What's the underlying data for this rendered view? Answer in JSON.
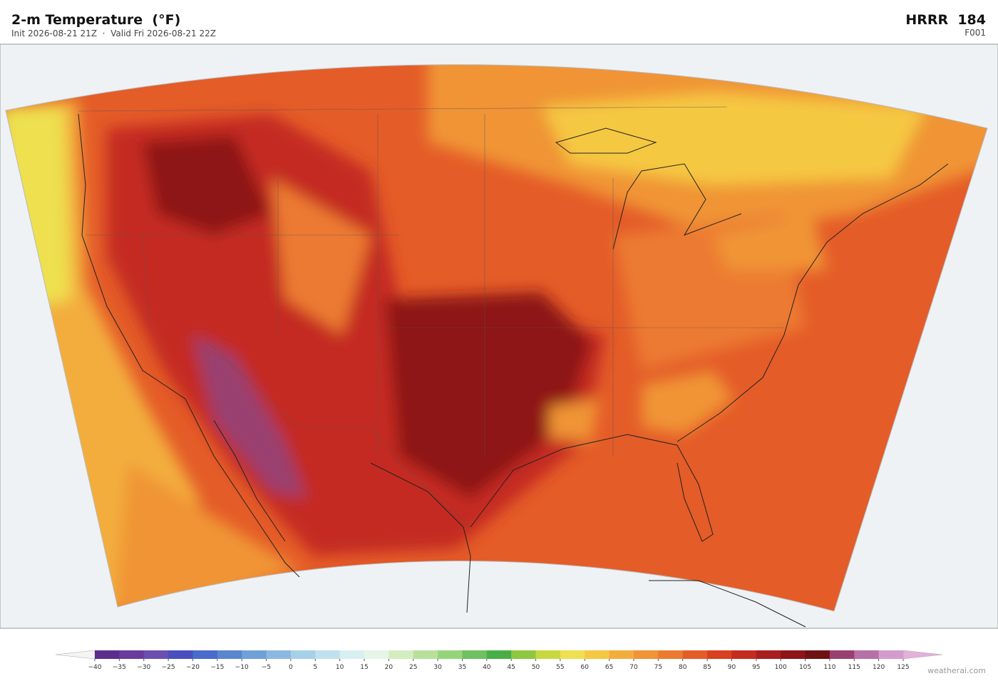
{
  "header": {
    "title": "2-m Temperature  (°F)",
    "subtitle": "Init 2026-08-21 21Z  ·  Valid Fri 2026-08-21 22Z",
    "model": "HRRR  184",
    "forecast_hour": "F001"
  },
  "colorbar": {
    "lim": [
      -40,
      125
    ],
    "ticks": [
      {
        "value": -40,
        "label": "−40"
      },
      {
        "value": -35,
        "label": "−35"
      },
      {
        "value": -30,
        "label": "−30"
      },
      {
        "value": -25,
        "label": "−25"
      },
      {
        "value": -20,
        "label": "−20"
      },
      {
        "value": -15,
        "label": "−15"
      },
      {
        "value": -10,
        "label": "−10"
      },
      {
        "value": -5,
        "label": "−5"
      },
      0,
      5,
      10,
      15,
      20,
      25,
      30,
      35,
      40,
      45,
      50,
      55,
      60,
      65,
      70,
      75,
      80,
      85,
      90,
      95,
      100,
      105,
      110,
      115,
      120,
      125
    ],
    "colors": [
      "#5b2d8e",
      "#6a3a9e",
      "#6b4fb0",
      "#4a4fc0",
      "#4a6acc",
      "#5a86d0",
      "#6fa0d8",
      "#8ab8e0",
      "#a6d0e8",
      "#c0e0ee",
      "#d8eff2",
      "#e6f5e6",
      "#d4edc0",
      "#b8e09a",
      "#96d47a",
      "#6fc060",
      "#4aae48",
      "#8ec840",
      "#c8d840",
      "#eee050",
      "#f5c842",
      "#f3ad3c",
      "#f09436",
      "#ec7a30",
      "#e45c28",
      "#d84020",
      "#c42c20",
      "#a81e1e",
      "#8e1418",
      "#6e1014",
      "#9a4070",
      "#b870a8",
      "#d49ccc"
    ],
    "under_color": "#f4f4f4",
    "over_color": "#e4b0dc"
  },
  "watermark": "weatherai.com"
}
